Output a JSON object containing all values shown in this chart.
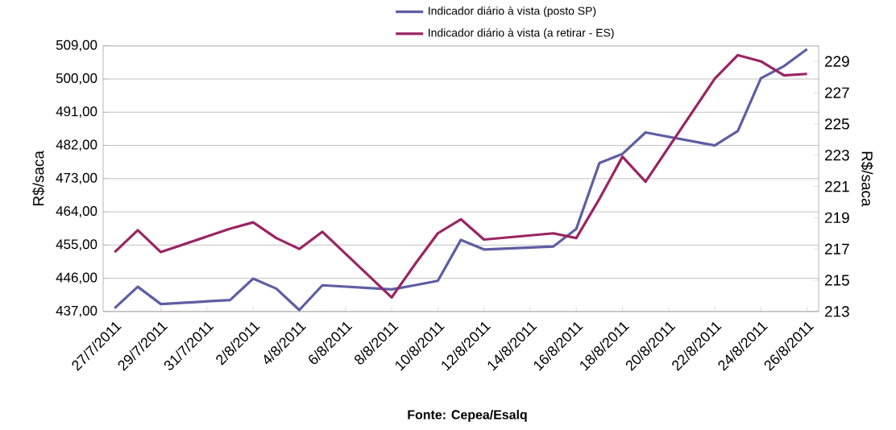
{
  "chart_data": {
    "type": "line",
    "ylabel": "R$/saca",
    "y2label": "R$/saca",
    "x": [
      "2011-07-27",
      "2011-07-28",
      "2011-07-29",
      "2011-08-01",
      "2011-08-02",
      "2011-08-03",
      "2011-08-04",
      "2011-08-05",
      "2011-08-08",
      "2011-08-09",
      "2011-08-10",
      "2011-08-11",
      "2011-08-12",
      "2011-08-15",
      "2011-08-16",
      "2011-08-17",
      "2011-08-18",
      "2011-08-19",
      "2011-08-22",
      "2011-08-23",
      "2011-08-24",
      "2011-08-25",
      "2011-08-26"
    ],
    "series": [
      {
        "name": "Indicador diário à vista (posto SP)",
        "color": "#5e5ea3",
        "values": [
          437.9,
          443.7,
          439.0,
          440.1,
          445.9,
          443.2,
          437.4,
          444.1,
          443.0,
          444.1,
          445.3,
          456.4,
          453.8,
          454.6,
          459.4,
          477.2,
          479.7,
          485.5,
          482.0,
          485.9,
          500.2,
          503.5,
          508.1
        ]
      },
      {
        "name": "Indicador diário à vista (a retirar - ES)",
        "color": "#9a2462",
        "axis": "y2",
        "values": [
          216.8,
          218.2,
          216.8,
          218.3,
          218.7,
          217.7,
          217.0,
          218.1,
          213.9,
          216.0,
          218.0,
          218.9,
          217.6,
          218.0,
          217.7,
          220.2,
          222.9,
          221.3,
          227.9,
          229.4,
          229.0,
          228.1,
          228.2
        ]
      }
    ],
    "xlim": [
      "2011-07-26T12:00",
      "2011-08-26T12:00"
    ],
    "xticks": [
      {
        "value": "2011-07-27",
        "label": "27/7/2011"
      },
      {
        "value": "2011-07-29",
        "label": "29/7/2011"
      },
      {
        "value": "2011-07-31",
        "label": "31/7/2011"
      },
      {
        "value": "2011-08-02",
        "label": "2/8/2011"
      },
      {
        "value": "2011-08-04",
        "label": "4/8/2011"
      },
      {
        "value": "2011-08-06",
        "label": "6/8/2011"
      },
      {
        "value": "2011-08-08",
        "label": "8/8/2011"
      },
      {
        "value": "2011-08-10",
        "label": "10/8/2011"
      },
      {
        "value": "2011-08-12",
        "label": "12/8/2011"
      },
      {
        "value": "2011-08-14",
        "label": "14/8/2011"
      },
      {
        "value": "2011-08-16",
        "label": "16/8/2011"
      },
      {
        "value": "2011-08-18",
        "label": "18/8/2011"
      },
      {
        "value": "2011-08-20",
        "label": "20/8/2011"
      },
      {
        "value": "2011-08-22",
        "label": "22/8/2011"
      },
      {
        "value": "2011-08-24",
        "label": "24/8/2011"
      },
      {
        "value": "2011-08-26",
        "label": "26/8/2011"
      }
    ],
    "ylim": [
      437,
      509
    ],
    "yticks": [
      {
        "value": 437,
        "label": "437,00"
      },
      {
        "value": 446,
        "label": "446,00"
      },
      {
        "value": 455,
        "label": "455,00"
      },
      {
        "value": 464,
        "label": "464,00"
      },
      {
        "value": 473,
        "label": "473,00"
      },
      {
        "value": 482,
        "label": "482,00"
      },
      {
        "value": 491,
        "label": "491,00"
      },
      {
        "value": 500,
        "label": "500,00"
      },
      {
        "value": 509,
        "label": "509,00"
      }
    ],
    "y2lim": [
      213,
      230
    ],
    "y2ticks": [
      213,
      215,
      217,
      219,
      221,
      223,
      225,
      227,
      229
    ],
    "grid": "y",
    "legend": "top",
    "marker": "none",
    "line_style": "solid",
    "annotations": [
      "Fonte: Cepea/Esalq"
    ]
  }
}
